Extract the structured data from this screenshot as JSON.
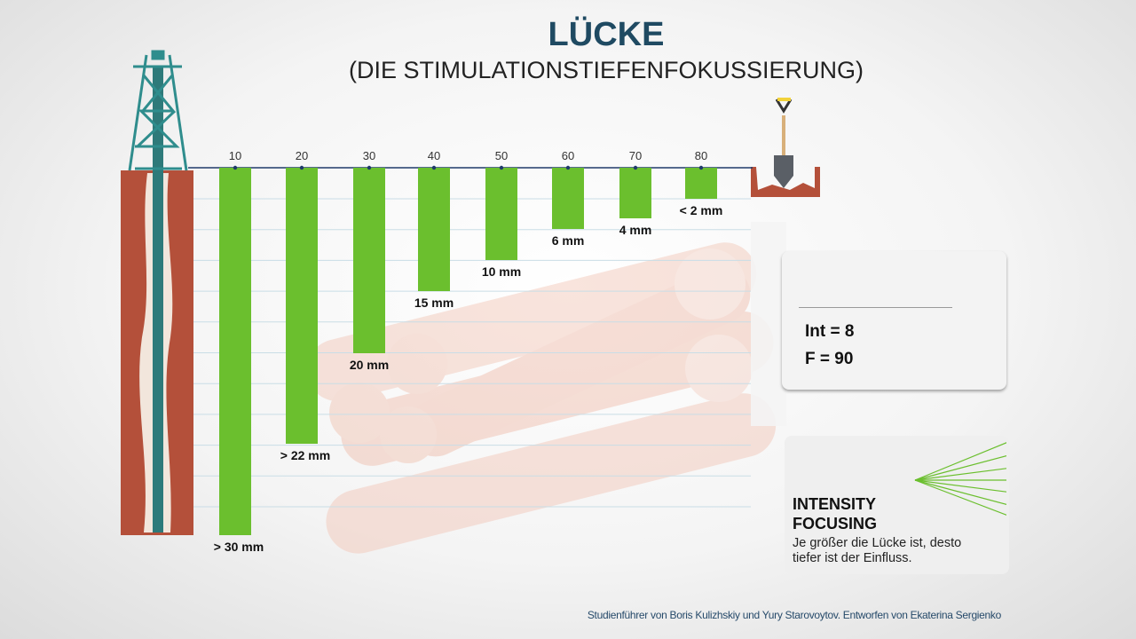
{
  "header": {
    "title": "LÜCKE",
    "subtitle": "(DIE STIMULATIONSTIEFENFOKUSSIERUNG)"
  },
  "chart_data": {
    "type": "bar",
    "orientation": "downward",
    "categories": [
      "10",
      "20",
      "30",
      "40",
      "50",
      "60",
      "70",
      "80"
    ],
    "gap_labels": [
      "> 30 mm",
      "> 22 mm",
      "20 mm",
      "15 mm",
      "10 mm",
      "6 mm",
      "4 mm",
      "< 2 mm"
    ],
    "values_mm": [
      30,
      22,
      20,
      15,
      10,
      6,
      4,
      2
    ],
    "bar_color": "#6bbf2e",
    "axis_color": "#1f3a6a",
    "grid": true
  },
  "info_panel": {
    "int_label": "Int = 8",
    "f_label": "F = 90"
  },
  "legend_panel": {
    "heading_line1": "INTENSITY",
    "heading_line2": "FOCUSING",
    "description_line1": "Je größer die Lücke ist, desto",
    "description_line2": "tiefer ist der Einfluss.",
    "icon": "fan-focus-icon",
    "accent": "#6bbf2e"
  },
  "footer": {
    "credit": "Studienführer von Boris Kulizhskiy und Yury Starovoytov. Entworfen von Ekaterina Sergienko"
  }
}
